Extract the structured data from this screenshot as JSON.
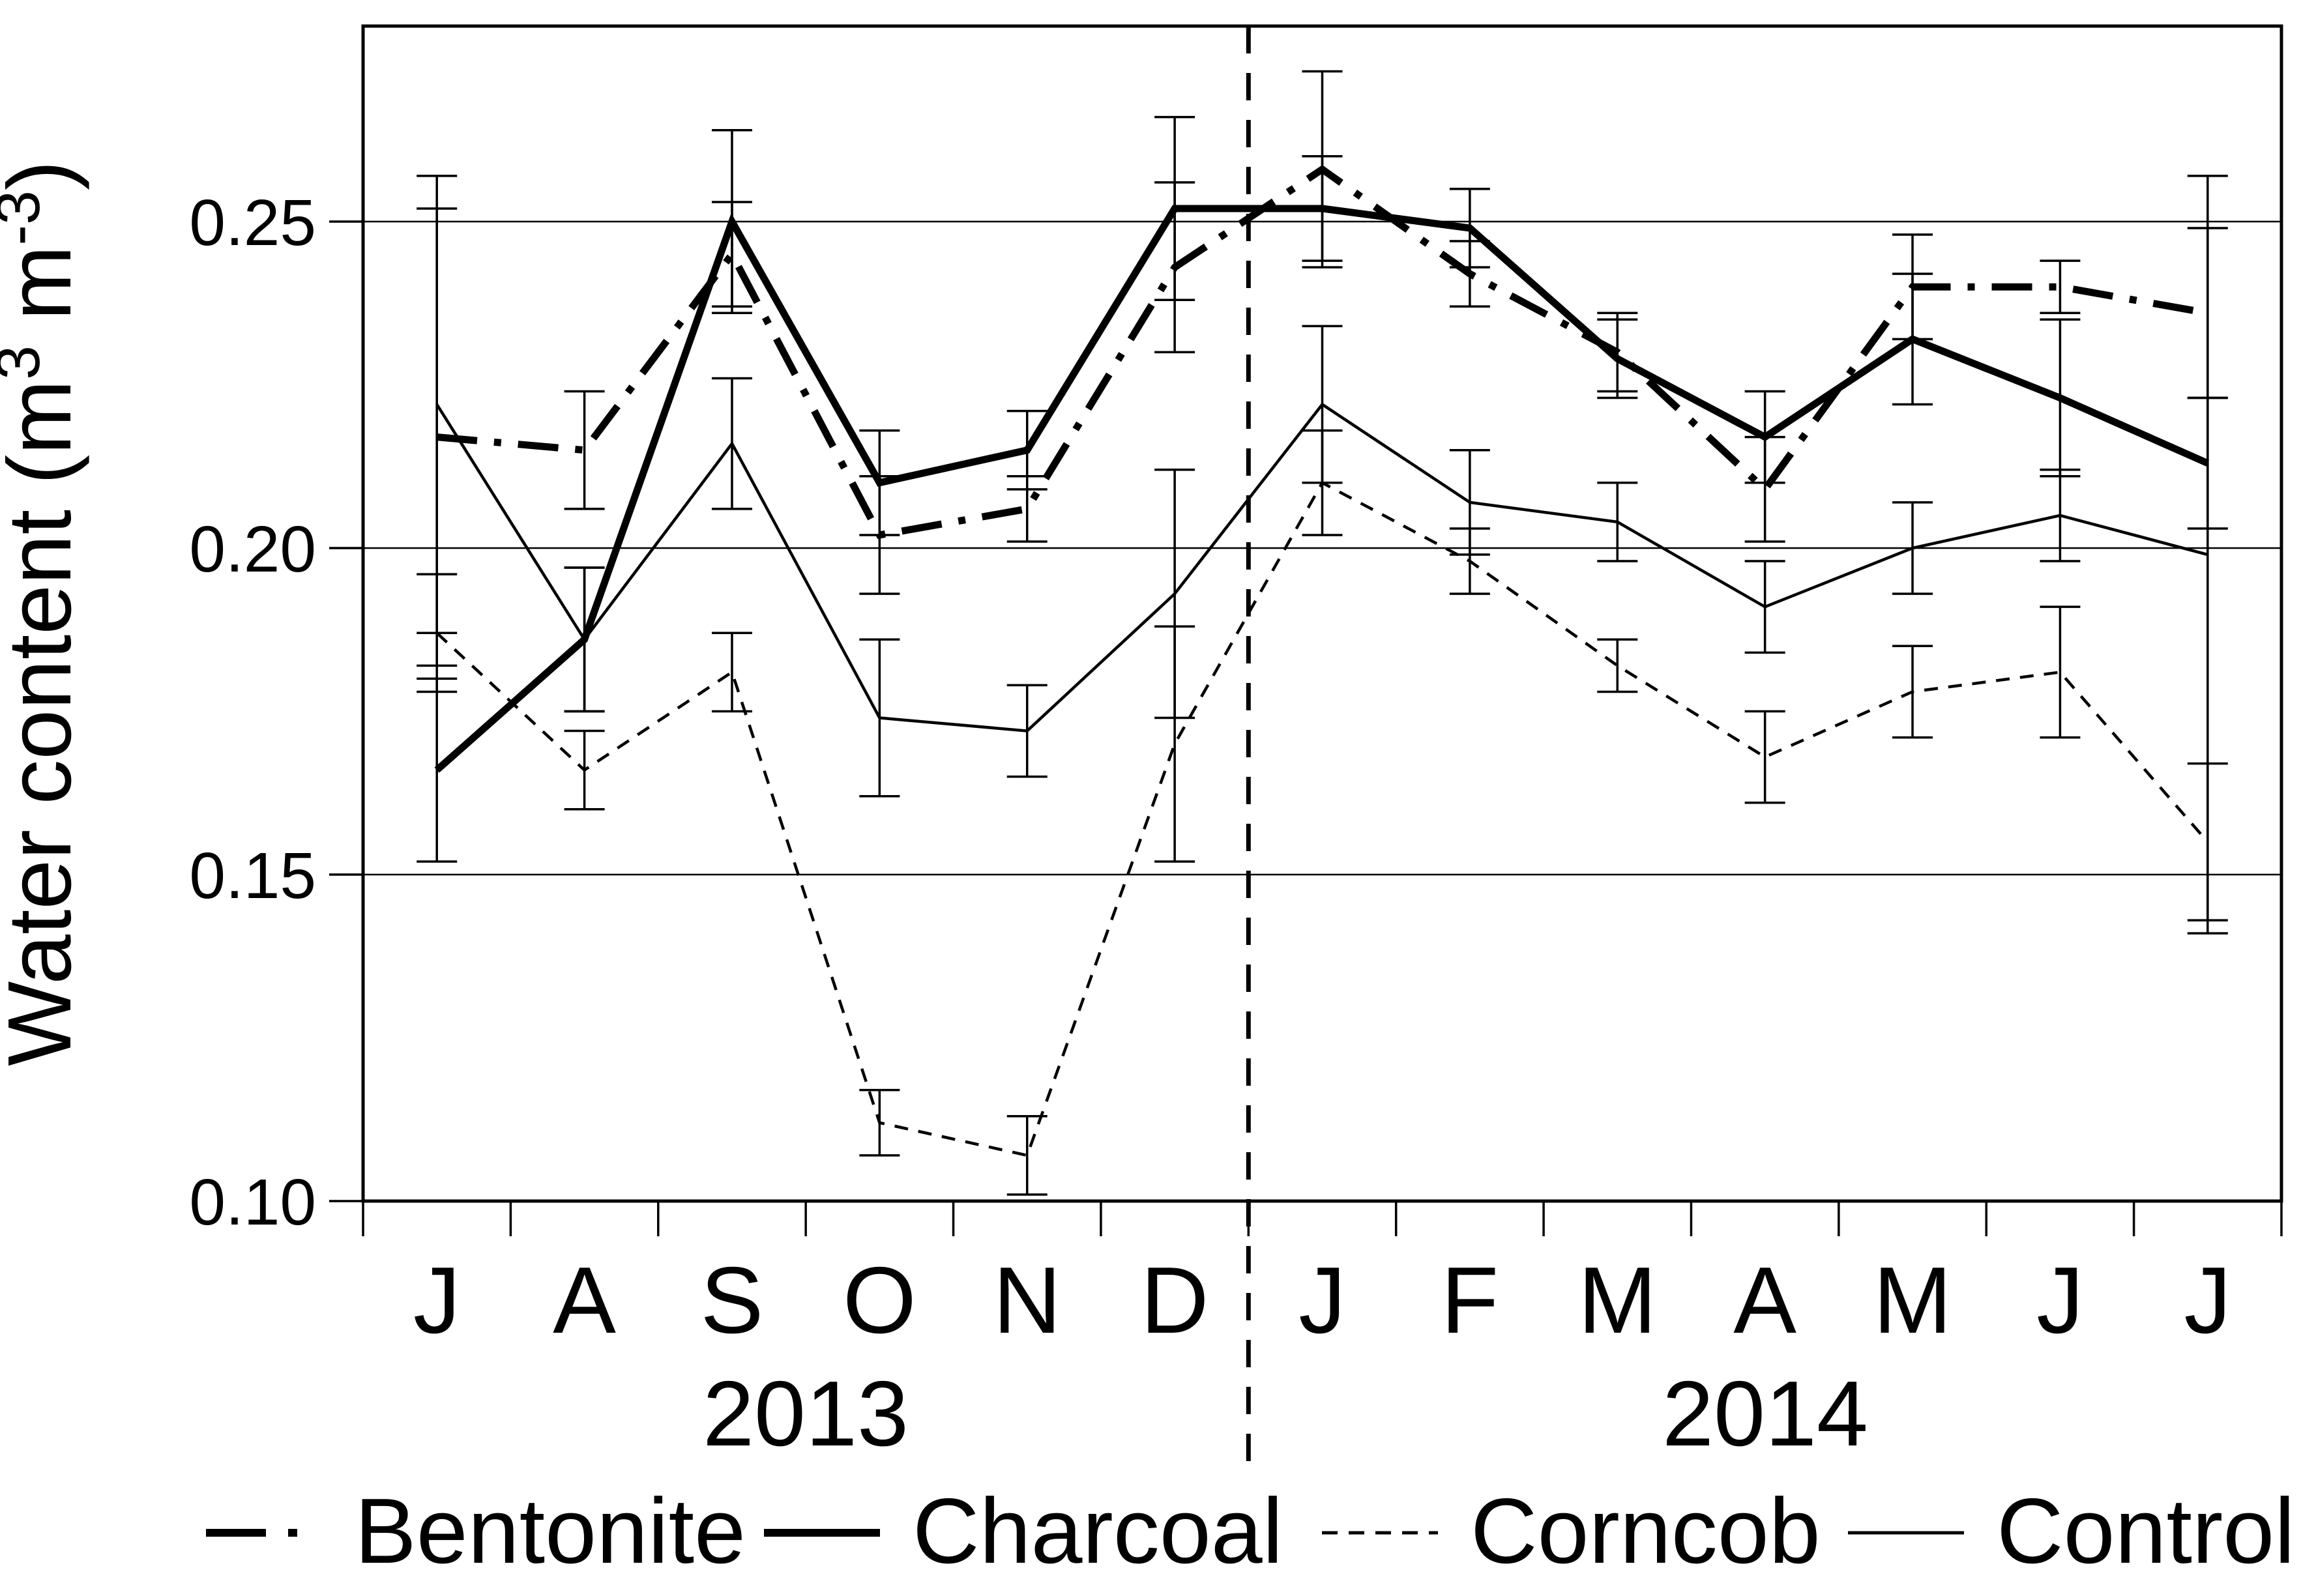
{
  "figure": {
    "background": "#ffffff",
    "ink": "#000000"
  },
  "y_axis": {
    "title_prefix": "Water content (m",
    "title_sup1": "3",
    "title_mid": " m",
    "title_sup2": "-3",
    "title_suffix": ")",
    "tick_labels": [
      "0.25",
      "0.20",
      "0.15",
      "0.10"
    ],
    "tick_values": [
      0.25,
      0.2,
      0.15,
      0.1
    ]
  },
  "x_axis": {
    "month_labels": [
      "J",
      "A",
      "S",
      "O",
      "N",
      "D",
      "J",
      "F",
      "M",
      "A",
      "M",
      "J",
      "J"
    ],
    "years": [
      {
        "label": "2013"
      },
      {
        "label": "2014"
      }
    ],
    "divider_boundary_index": 6
  },
  "legend": {
    "items": [
      {
        "label": "Bentonite",
        "style": "thick-dashdot"
      },
      {
        "label": "Charcoal",
        "style": "thick-solid"
      },
      {
        "label": "Corncob",
        "style": "thin-dashed"
      },
      {
        "label": "Control",
        "style": "thin-solid"
      }
    ]
  },
  "chart_data": {
    "type": "line",
    "title": "",
    "xlabel": "",
    "ylabel": "Water content (m3 m-3)",
    "categories": [
      "J",
      "A",
      "S",
      "O",
      "N",
      "D",
      "J",
      "F",
      "M",
      "A",
      "M",
      "J",
      "J"
    ],
    "category_years": [
      "2013",
      "2013",
      "2013",
      "2013",
      "2013",
      "2013",
      "2014",
      "2014",
      "2014",
      "2014",
      "2014",
      "2014",
      "2014"
    ],
    "ylim": [
      0.1,
      0.28
    ],
    "gridline_values": [
      0.25,
      0.2,
      0.15
    ],
    "grid": true,
    "legend_position": "bottom",
    "error_bars": true,
    "year_divider_between": [
      "D 2013",
      "J 2014"
    ],
    "series": [
      {
        "name": "Bentonite",
        "style": "thick-dashdot",
        "values": [
          0.217,
          0.215,
          0.245,
          0.202,
          0.206,
          0.243,
          0.258,
          0.242,
          0.23,
          0.209,
          0.24,
          0.24,
          0.236
        ],
        "errors": [
          0.035,
          0.009,
          0.008,
          0.009,
          0.005,
          0.013,
          0.015,
          0.005,
          0.006,
          0.008,
          0.008,
          0.004,
          0.013
        ]
      },
      {
        "name": "Charcoal",
        "style": "thick-solid",
        "values": [
          0.166,
          0.186,
          0.25,
          0.21,
          0.215,
          0.252,
          0.252,
          0.249,
          0.229,
          0.217,
          0.232,
          0.223,
          0.213
        ],
        "errors": [
          0.014,
          0.011,
          0.014,
          0.008,
          0.006,
          0.014,
          0.008,
          0.006,
          0.006,
          0.007,
          0.01,
          0.012,
          0.01
        ]
      },
      {
        "name": "Corncob",
        "style": "thin-dashed",
        "values": [
          0.187,
          0.166,
          0.181,
          0.112,
          0.107,
          0.17,
          0.21,
          0.198,
          0.182,
          0.168,
          0.178,
          0.181,
          0.155
        ],
        "errors": [
          0.009,
          0.006,
          0.006,
          0.005,
          0.006,
          0.018,
          0.008,
          0.005,
          0.004,
          0.007,
          0.007,
          0.01,
          0.012
        ]
      },
      {
        "name": "Control",
        "style": "thin-solid",
        "values": [
          0.222,
          0.186,
          0.216,
          0.174,
          0.172,
          0.193,
          0.222,
          0.207,
          0.204,
          0.191,
          0.2,
          0.205,
          0.199
        ],
        "errors": [
          0.035,
          0.011,
          0.01,
          0.012,
          0.007,
          0.019,
          0.012,
          0.008,
          0.006,
          0.007,
          0.007,
          0.007,
          0.058
        ]
      }
    ]
  }
}
